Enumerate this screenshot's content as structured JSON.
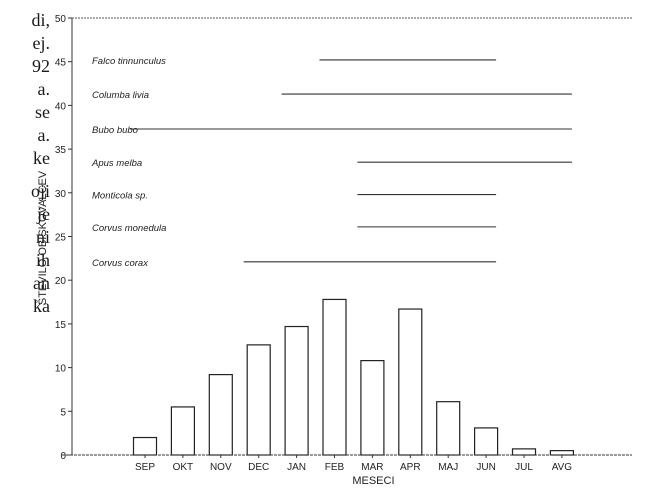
{
  "left_text_fragments": [
    "di,",
    "ej.",
    "92",
    "a.",
    "se",
    "a.",
    "ke",
    "oji",
    "je",
    "ni",
    "ih",
    "an",
    "ka"
  ],
  "chart_data": {
    "type": "bar",
    "ylabel": "ŠTEVILO OBISKOVALCEV",
    "xlabel": "MESECI",
    "ylim": [
      0,
      50
    ],
    "yticks": [
      0,
      5,
      10,
      15,
      20,
      25,
      30,
      35,
      40,
      45,
      50
    ],
    "categories": [
      "SEP",
      "OKT",
      "NOV",
      "DEC",
      "JAN",
      "FEB",
      "MAR",
      "APR",
      "MAJ",
      "JUN",
      "JUL",
      "AVG"
    ],
    "values": [
      2,
      5.5,
      9.2,
      12.6,
      14.7,
      17.8,
      10.8,
      16.7,
      6.1,
      3.1,
      0.7,
      0.5
    ],
    "species_presence": [
      {
        "name": "Falco tinnunculus",
        "y": 45.2,
        "start": "FEB",
        "end": "JUN"
      },
      {
        "name": "Columba livia",
        "y": 41.3,
        "start": "JAN",
        "end": "AVG"
      },
      {
        "name": "Bubo bubo",
        "y": 37.3,
        "start": "SEP",
        "end": "AVG"
      },
      {
        "name": "Apus melba",
        "y": 33.5,
        "start": "MAR",
        "end": "AVG"
      },
      {
        "name": "Monticola sp.",
        "y": 29.8,
        "start": "MAR",
        "end": "JUN"
      },
      {
        "name": "Corvus monedula",
        "y": 26.1,
        "start": "MAR",
        "end": "JUN"
      },
      {
        "name": "Corvus corax",
        "y": 22.1,
        "start": "DEC",
        "end": "JUN"
      }
    ]
  }
}
